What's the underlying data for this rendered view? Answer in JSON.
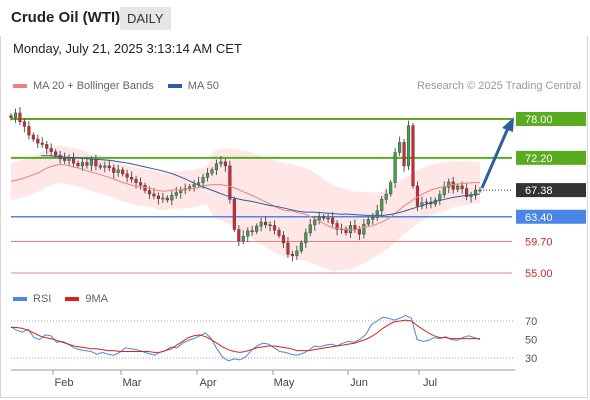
{
  "header": {
    "title": "Crude Oil (WTI)",
    "timeframe": "DAILY",
    "datetime": "Monday, July 21, 2025 3:13:14 AM CET"
  },
  "legend": {
    "ma20_label": "MA 20 + Bollinger Bands",
    "ma50_label": "MA 50",
    "credit": "Research © 2025 Trading Central"
  },
  "rsi_legend": {
    "rsi_label": "RSI",
    "ma9_label": "9MA"
  },
  "colors": {
    "ma20": "#f08080",
    "bollinger_fill": "#ffe3e3",
    "ma50": "#2e5e9e",
    "resistance": "#5aab1e",
    "pivot": "#4a86e8",
    "support": "#f08080",
    "current_price_badge": "#333333",
    "candle_up": "#3fa34d",
    "candle_down": "#d9252e",
    "rsi": "#4a86e8",
    "rsi_ma9": "#e02020",
    "arrow": "#2e5e9e"
  },
  "chart_data": [
    {
      "type": "candlestick",
      "title": "Crude Oil (WTI)",
      "x_labels": [
        "Feb",
        "Mar",
        "Apr",
        "May",
        "Jun",
        "Jul"
      ],
      "y_range": [
        54.5,
        79
      ],
      "levels": [
        {
          "value": 78.0,
          "label": "78.00",
          "kind": "resistance"
        },
        {
          "value": 72.2,
          "label": "72.20",
          "kind": "resistance"
        },
        {
          "value": 67.38,
          "label": "67.38",
          "kind": "current"
        },
        {
          "value": 63.4,
          "label": "63.40",
          "kind": "pivot"
        },
        {
          "value": 59.7,
          "label": "59.70",
          "kind": "support"
        },
        {
          "value": 55.0,
          "label": "55.00",
          "kind": "support"
        }
      ],
      "close": [
        78.2,
        78.9,
        77.6,
        76.9,
        75.6,
        75.0,
        74.4,
        74.2,
        73.6,
        73.1,
        72.6,
        72.1,
        71.8,
        72.2,
        71.4,
        71.0,
        71.5,
        71.1,
        71.9,
        71.0,
        70.8,
        71.0,
        70.7,
        70.0,
        70.4,
        69.8,
        69.3,
        69.0,
        68.5,
        68.1,
        67.3,
        66.8,
        66.5,
        66.1,
        66.2,
        65.9,
        66.6,
        67.0,
        67.4,
        67.6,
        67.9,
        68.2,
        68.5,
        69.3,
        69.9,
        70.4,
        71.3,
        71.6,
        71.0,
        66.0,
        61.5,
        59.8,
        60.5,
        61.3,
        61.2,
        62.0,
        62.6,
        62.2,
        62.1,
        61.4,
        60.6,
        59.5,
        57.8,
        57.6,
        58.3,
        59.5,
        61.0,
        62.2,
        62.9,
        63.4,
        63.2,
        63.2,
        62.4,
        61.5,
        61.6,
        61.0,
        62.1,
        61.5,
        60.8,
        62.3,
        63.0,
        63.3,
        64.3,
        66.0,
        66.8,
        68.5,
        73.0,
        74.5,
        71.0,
        77.0,
        68.0,
        65.0,
        65.5,
        65.6,
        65.3,
        65.9,
        66.7,
        67.8,
        68.6,
        67.5,
        68.0,
        67.6,
        66.4,
        66.6,
        67.4,
        67.38
      ],
      "ma20": [
        68.7,
        68.9,
        69.2,
        69.6,
        70.0,
        70.6,
        71.0,
        71.2,
        71.1,
        70.8,
        70.6,
        70.2,
        69.9,
        69.6,
        69.3,
        68.9,
        68.5,
        68.2,
        67.9,
        67.8,
        67.6,
        67.3,
        67.2,
        67.4,
        67.4,
        67.5,
        67.6,
        67.8,
        68.1,
        68.2,
        68.2,
        68.0,
        67.7,
        67.2,
        66.8,
        66.3,
        65.8,
        65.3,
        64.8,
        64.4,
        64.3,
        64.0,
        63.8,
        63.3,
        62.8,
        62.2,
        61.7,
        61.6,
        61.5,
        61.4,
        61.7,
        61.9,
        62.2,
        62.6,
        63.2,
        64.0,
        64.9,
        65.6,
        66.3,
        66.9,
        67.4,
        67.7,
        67.9,
        68.2,
        68.3,
        68.4,
        68.5,
        68.5
      ],
      "ma50": [
        72.5,
        72.5,
        72.4,
        72.3,
        72.2,
        72.1,
        72.0,
        71.9,
        71.8,
        71.6,
        71.4,
        71.1,
        70.8,
        70.5,
        70.2,
        69.8,
        69.3,
        68.7,
        68.1,
        67.6,
        67.1,
        66.6,
        66.2,
        65.9,
        65.7,
        65.4,
        65.1,
        64.9,
        64.6,
        64.3,
        64.1,
        64.1,
        64.0,
        63.9,
        63.8,
        63.8,
        63.7,
        63.6,
        63.6,
        63.6,
        63.8,
        64.1,
        64.5,
        64.9,
        65.3,
        65.7,
        66.0,
        66.3,
        66.5,
        66.7,
        66.8
      ]
    },
    {
      "type": "line",
      "title": "RSI",
      "y_ticks": [
        70,
        50,
        30
      ],
      "y_range": [
        20,
        80
      ],
      "series": [
        {
          "name": "RSI",
          "values": [
            64,
            60,
            58,
            61,
            52,
            50,
            55,
            54,
            47,
            48,
            45,
            41,
            39,
            38,
            37,
            34,
            36,
            34,
            33,
            36,
            41,
            40,
            39,
            37,
            35,
            33,
            36,
            38,
            42,
            41,
            46,
            49,
            51,
            54,
            57,
            51,
            40,
            31,
            27,
            29,
            28,
            31,
            38,
            43,
            46,
            45,
            41,
            37,
            36,
            34,
            33,
            35,
            38,
            43,
            42,
            44,
            45,
            43,
            46,
            48,
            47,
            50,
            55,
            66,
            70,
            74,
            73,
            71,
            73,
            76,
            73,
            50,
            48,
            49,
            52,
            51,
            53,
            50,
            49,
            52,
            54,
            52,
            50
          ]
        },
        {
          "name": "9MA",
          "values": [
            63,
            63,
            62,
            60,
            57,
            54,
            52,
            51,
            49,
            47,
            45,
            43,
            42,
            41,
            40,
            40,
            39,
            38,
            38,
            37,
            37,
            37,
            37,
            37,
            37,
            36,
            36,
            38,
            40,
            44,
            48,
            52,
            54,
            55,
            53,
            50,
            46,
            42,
            39,
            37,
            36,
            37,
            39,
            41,
            42,
            43,
            43,
            42,
            41,
            40,
            38,
            38,
            38,
            39,
            40,
            41,
            42,
            43,
            44,
            45,
            46,
            48,
            50,
            53,
            57,
            62,
            66,
            69,
            70,
            71,
            70,
            65,
            61,
            57,
            54,
            52,
            52,
            51,
            51,
            51,
            51,
            51,
            51
          ]
        }
      ]
    }
  ]
}
